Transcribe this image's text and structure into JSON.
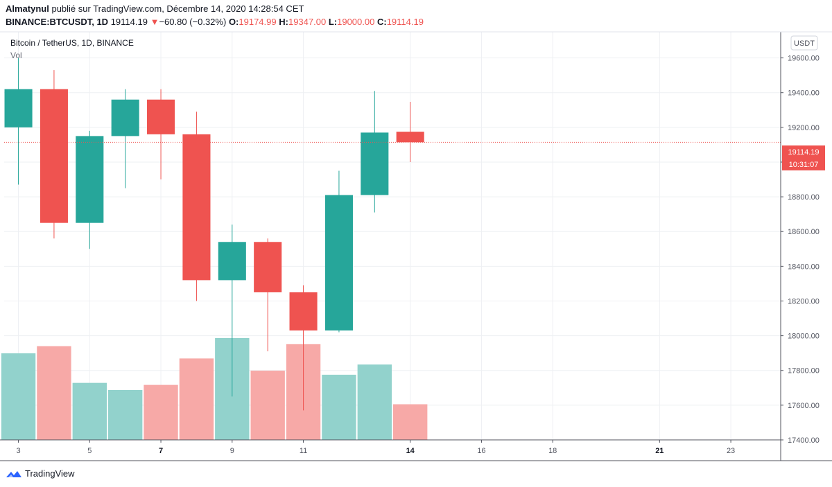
{
  "header": {
    "author": "Almatynul",
    "published": "publié sur TradingView.com, Décembre 14, 2020 14:28:54 CET",
    "symbol": "BINANCE:BTCUSDT, 1D",
    "last": "19114.19",
    "change_arrow": "▼",
    "change": "−60.80 (−0.32%)",
    "o_label": "O:",
    "o_value": "19174.99",
    "h_label": "H:",
    "h_value": "19347.00",
    "l_label": "L:",
    "l_value": "19000.00",
    "c_label": "C:",
    "c_value": "19114.19"
  },
  "legend": {
    "title": "Bitcoin / TetherUS, 1D, BINANCE",
    "vol": "Vol"
  },
  "axis": {
    "currency_badge": "USDT",
    "price_label": "19114.19",
    "countdown_label": "10:31:07"
  },
  "footer": {
    "brand": "TradingView",
    "logo_icon": "tradingview-logo-icon"
  },
  "colors": {
    "up": "#26a69a",
    "down": "#ef5350",
    "up_vol": "#92d2cc",
    "down_vol": "#f7a9a7",
    "grid": "#eef0f3"
  },
  "chart_data": {
    "type": "candlestick",
    "ylim": [
      17400,
      19750
    ],
    "y_ticks": [
      17400,
      17600,
      17800,
      18000,
      18200,
      18400,
      18600,
      18800,
      19000,
      19200,
      19400,
      19600
    ],
    "y_tick_labels": [
      "17400.00",
      "17600.00",
      "17800.00",
      "18000.00",
      "18200.00",
      "18400.00",
      "18600.00",
      "18800.00",
      "19000.00",
      "19200.00",
      "19400.00",
      "19600.00"
    ],
    "x_range": [
      2.6,
      24.4
    ],
    "x_ticks": [
      3,
      5,
      7,
      9,
      11,
      14,
      16,
      18,
      21,
      23
    ],
    "x_tick_labels": [
      "3",
      "5",
      "7",
      "9",
      "11",
      "14",
      "16",
      "18",
      "21",
      "23"
    ],
    "x_bold_ticks": [
      7,
      14,
      21
    ],
    "last_price": 19114.19,
    "candles": [
      {
        "day": 3,
        "open": 19200,
        "high": 19600,
        "low": 18870,
        "close": 19420
      },
      {
        "day": 4,
        "open": 19420,
        "high": 19530,
        "low": 18560,
        "close": 18650
      },
      {
        "day": 5,
        "open": 18650,
        "high": 19180,
        "low": 18500,
        "close": 19150
      },
      {
        "day": 6,
        "open": 19150,
        "high": 19420,
        "low": 18850,
        "close": 19360
      },
      {
        "day": 7,
        "open": 19360,
        "high": 19420,
        "low": 18900,
        "close": 19160
      },
      {
        "day": 8,
        "open": 19160,
        "high": 19290,
        "low": 18200,
        "close": 18320
      },
      {
        "day": 9,
        "open": 18320,
        "high": 18640,
        "low": 17650,
        "close": 18540
      },
      {
        "day": 10,
        "open": 18540,
        "high": 18560,
        "low": 17910,
        "close": 18250
      },
      {
        "day": 11,
        "open": 18250,
        "high": 18290,
        "low": 17570,
        "close": 18030
      },
      {
        "day": 12,
        "open": 18030,
        "high": 18950,
        "low": 18020,
        "close": 18810
      },
      {
        "day": 13,
        "open": 18810,
        "high": 19410,
        "low": 18710,
        "close": 19170
      },
      {
        "day": 14,
        "open": 19174.99,
        "high": 19347,
        "low": 19000,
        "close": 19114.19
      }
    ],
    "volume_relative": [
      0.85,
      0.92,
      0.56,
      0.49,
      0.54,
      0.8,
      1.0,
      0.68,
      0.94,
      0.64,
      0.74,
      0.35
    ]
  }
}
